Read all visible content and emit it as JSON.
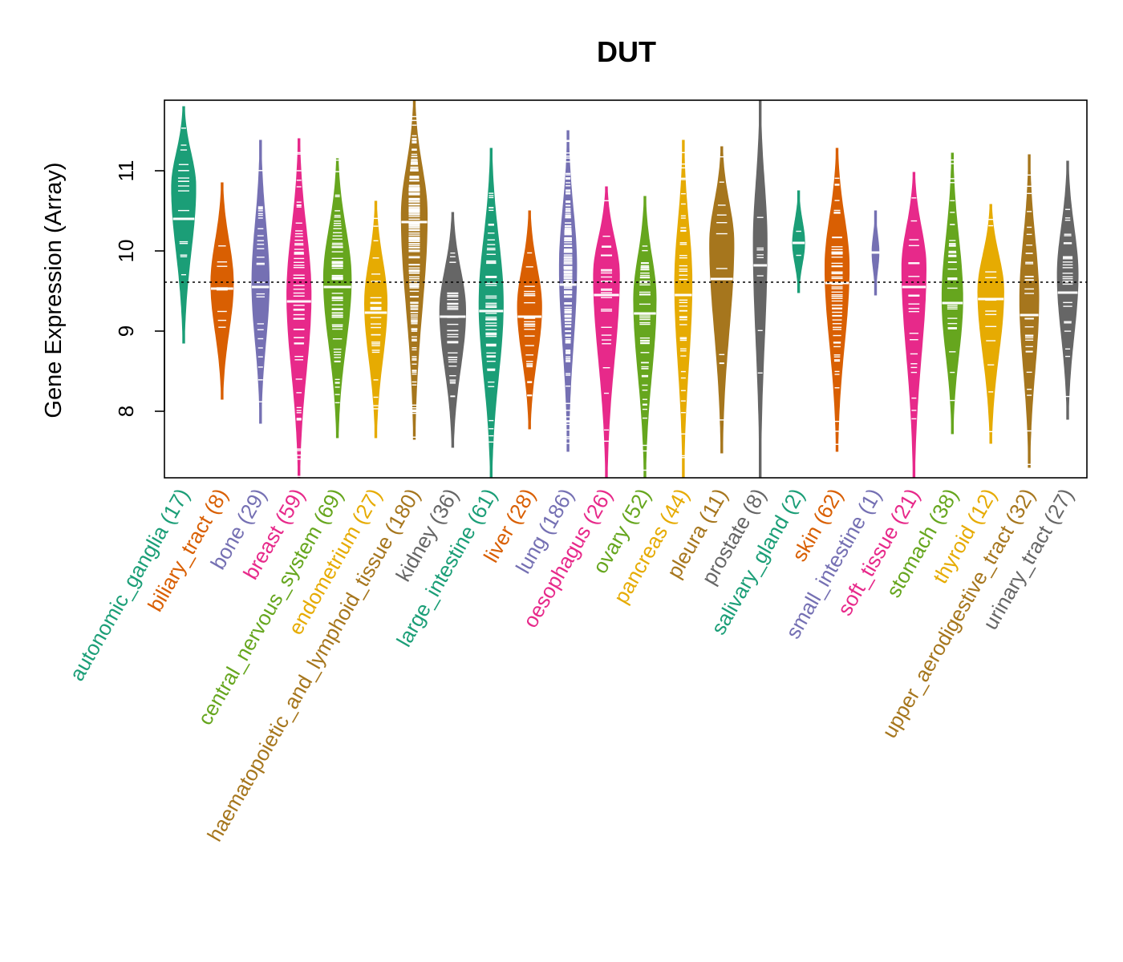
{
  "chart_data": {
    "type": "violin",
    "title": "DUT",
    "ylabel": "Gene Expression (Array)",
    "xlabel": "",
    "ylim": [
      7.17,
      11.88
    ],
    "yticks": [
      8,
      9,
      10,
      11
    ],
    "reference_line": 9.61,
    "categories": [
      {
        "name": "autonomic_ganglia",
        "n": 17,
        "label": "autonomic_ganglia (17)",
        "color": "#1B9E77",
        "min": 8.85,
        "max": 11.8,
        "median": 10.4,
        "mode": 10.8,
        "width": 0.7
      },
      {
        "name": "biliary_tract",
        "n": 8,
        "label": "biliary_tract (8)",
        "color": "#D95F02",
        "min": 8.15,
        "max": 10.85,
        "median": 9.53,
        "mode": 9.6,
        "width": 0.65
      },
      {
        "name": "bone",
        "n": 29,
        "label": "bone (29)",
        "color": "#7570B3",
        "min": 7.85,
        "max": 11.38,
        "median": 9.55,
        "mode": 9.6,
        "width": 0.5
      },
      {
        "name": "breast",
        "n": 59,
        "label": "breast (59)",
        "color": "#E7298A",
        "min": 7.17,
        "max": 11.4,
        "median": 9.37,
        "mode": 9.45,
        "width": 0.7
      },
      {
        "name": "central_nervous_system",
        "n": 69,
        "label": "central_nervous_system (69)",
        "color": "#66A61E",
        "min": 7.67,
        "max": 11.15,
        "median": 9.55,
        "mode": 9.65,
        "width": 0.8
      },
      {
        "name": "endometrium",
        "n": 27,
        "label": "endometrium (27)",
        "color": "#E6AB02",
        "min": 7.67,
        "max": 10.62,
        "median": 9.23,
        "mode": 9.35,
        "width": 0.65
      },
      {
        "name": "haematopoietic_and_lymphoid_tissue",
        "n": 180,
        "label": "haematopoietic_and_lymphoid_tissue (180)",
        "color": "#A6761D",
        "min": 7.65,
        "max": 11.88,
        "median": 10.36,
        "mode": 10.45,
        "width": 0.75
      },
      {
        "name": "kidney",
        "n": 36,
        "label": "kidney (36)",
        "color": "#666666",
        "min": 7.55,
        "max": 10.48,
        "median": 9.18,
        "mode": 9.25,
        "width": 0.75
      },
      {
        "name": "large_intestine",
        "n": 61,
        "label": "large_intestine (61)",
        "color": "#1B9E77",
        "min": 7.17,
        "max": 11.28,
        "median": 9.25,
        "mode": 9.35,
        "width": 0.7
      },
      {
        "name": "liver",
        "n": 28,
        "label": "liver (28)",
        "color": "#D95F02",
        "min": 7.78,
        "max": 10.5,
        "median": 9.18,
        "mode": 9.3,
        "width": 0.7
      },
      {
        "name": "lung",
        "n": 186,
        "label": "lung (186)",
        "color": "#7570B3",
        "min": 7.5,
        "max": 11.5,
        "median": 9.58,
        "mode": 9.8,
        "width": 0.5
      },
      {
        "name": "oesophagus",
        "n": 26,
        "label": "oesophagus (26)",
        "color": "#E7298A",
        "min": 7.17,
        "max": 10.8,
        "median": 9.45,
        "mode": 9.7,
        "width": 0.75
      },
      {
        "name": "ovary",
        "n": 52,
        "label": "ovary (52)",
        "color": "#66A61E",
        "min": 7.17,
        "max": 10.68,
        "median": 9.22,
        "mode": 9.4,
        "width": 0.65
      },
      {
        "name": "pancreas",
        "n": 44,
        "label": "pancreas (44)",
        "color": "#E6AB02",
        "min": 7.17,
        "max": 11.38,
        "median": 9.45,
        "mode": 9.6,
        "width": 0.5
      },
      {
        "name": "pleura",
        "n": 11,
        "label": "pleura (11)",
        "color": "#A6761D",
        "min": 7.48,
        "max": 11.3,
        "median": 9.65,
        "mode": 10.1,
        "width": 0.7
      },
      {
        "name": "prostate",
        "n": 8,
        "label": "prostate (8)",
        "color": "#666666",
        "min": 7.17,
        "max": 11.88,
        "median": 9.82,
        "mode": 10.1,
        "width": 0.4
      },
      {
        "name": "salivary_gland",
        "n": 2,
        "label": "salivary_gland (2)",
        "color": "#1B9E77",
        "min": 9.48,
        "max": 10.75,
        "median": 10.1,
        "mode": 10.1,
        "width": 0.35
      },
      {
        "name": "skin",
        "n": 62,
        "label": "skin (62)",
        "color": "#D95F02",
        "min": 7.5,
        "max": 11.28,
        "median": 9.6,
        "mode": 9.8,
        "width": 0.7
      },
      {
        "name": "small_intestine",
        "n": 1,
        "label": "small_intestine (1)",
        "color": "#7570B3",
        "min": 9.45,
        "max": 10.5,
        "median": 9.98,
        "mode": 9.98,
        "width": 0.2
      },
      {
        "name": "soft_tissue",
        "n": 21,
        "label": "soft_tissue (21)",
        "color": "#E7298A",
        "min": 7.17,
        "max": 10.98,
        "median": 9.55,
        "mode": 9.8,
        "width": 0.7
      },
      {
        "name": "stomach",
        "n": 38,
        "label": "stomach (38)",
        "color": "#66A61E",
        "min": 7.72,
        "max": 11.22,
        "median": 9.35,
        "mode": 9.4,
        "width": 0.6
      },
      {
        "name": "thyroid",
        "n": 12,
        "label": "thyroid (12)",
        "color": "#E6AB02",
        "min": 7.6,
        "max": 10.58,
        "median": 9.4,
        "mode": 9.5,
        "width": 0.75
      },
      {
        "name": "upper_aerodigestive_tract",
        "n": 32,
        "label": "upper_aerodigestive_tract (32)",
        "color": "#A6761D",
        "min": 7.3,
        "max": 11.2,
        "median": 9.2,
        "mode": 9.4,
        "width": 0.55
      },
      {
        "name": "urinary_tract",
        "n": 27,
        "label": "urinary_tract (27)",
        "color": "#666666",
        "min": 7.9,
        "max": 11.12,
        "median": 9.48,
        "mode": 9.7,
        "width": 0.6
      }
    ]
  }
}
